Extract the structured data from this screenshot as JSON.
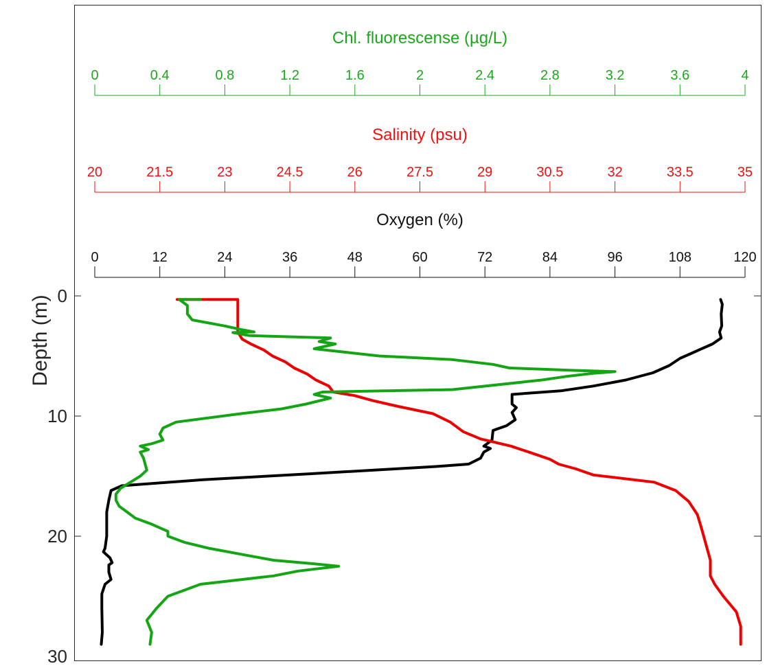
{
  "chart_data": {
    "type": "line",
    "y_axis": {
      "label": "Depth (m)",
      "range": [
        0,
        30
      ],
      "inverted": true,
      "ticks": [
        "0",
        "10",
        "20",
        "30"
      ]
    },
    "x_axes": [
      {
        "key": "chl",
        "label": "Chl. fluorescense (µg/L)",
        "color": "#1aa81a",
        "range": [
          0,
          4
        ],
        "ticks": [
          "0",
          "0.4",
          "0.8",
          "1.2",
          "1.6",
          "2",
          "2.4",
          "2.8",
          "3.2",
          "3.6",
          "4"
        ]
      },
      {
        "key": "salinity",
        "label": "Salinity (psu)",
        "color": "#ee1111",
        "range": [
          20,
          35
        ],
        "ticks": [
          "20",
          "21.5",
          "23",
          "24.5",
          "26",
          "27.5",
          "29",
          "30.5",
          "32",
          "33.5",
          "35"
        ]
      },
      {
        "key": "oxygen",
        "label": "Oxygen (%)",
        "color": "#111111",
        "range": [
          0,
          120
        ],
        "ticks": [
          "0",
          "12",
          "24",
          "36",
          "48",
          "60",
          "72",
          "84",
          "96",
          "108",
          "120"
        ]
      }
    ],
    "series": [
      {
        "axis": "oxygen",
        "color": "#000000",
        "points": [
          [
            115.5,
            0.3
          ],
          [
            115.8,
            0.7
          ],
          [
            115.6,
            1.5
          ],
          [
            115.7,
            2.5
          ],
          [
            115.3,
            3.0
          ],
          [
            115.6,
            3.5
          ],
          [
            114.0,
            4.0
          ],
          [
            111.0,
            4.6
          ],
          [
            108.0,
            5.2
          ],
          [
            106.0,
            5.8
          ],
          [
            103.0,
            6.4
          ],
          [
            98.0,
            7.0
          ],
          [
            92.0,
            7.5
          ],
          [
            86.0,
            7.9
          ],
          [
            77.0,
            8.2
          ],
          [
            77.0,
            9.0
          ],
          [
            77.8,
            9.3
          ],
          [
            77.0,
            9.7
          ],
          [
            77.6,
            10.3
          ],
          [
            76.0,
            10.8
          ],
          [
            73.5,
            11.2
          ],
          [
            73.3,
            12.0
          ],
          [
            71.8,
            12.5
          ],
          [
            73.0,
            12.7
          ],
          [
            71.8,
            13.0
          ],
          [
            71.2,
            13.5
          ],
          [
            69.0,
            14.0
          ],
          [
            63.0,
            14.2
          ],
          [
            40.0,
            14.8
          ],
          [
            20.0,
            15.3
          ],
          [
            5.0,
            15.8
          ],
          [
            3.0,
            16.2
          ],
          [
            2.7,
            16.8
          ],
          [
            2.6,
            17.0
          ],
          [
            2.2,
            18.0
          ],
          [
            2.2,
            20.0
          ],
          [
            1.9,
            21.0
          ],
          [
            1.6,
            21.3
          ],
          [
            2.8,
            21.8
          ],
          [
            3.2,
            22.2
          ],
          [
            2.6,
            22.4
          ],
          [
            2.6,
            23.0
          ],
          [
            3.0,
            23.6
          ],
          [
            1.9,
            24.0
          ],
          [
            1.3,
            24.8
          ],
          [
            1.3,
            26.0
          ],
          [
            1.4,
            28.0
          ],
          [
            1.2,
            29.0
          ]
        ]
      },
      {
        "axis": "salinity",
        "color": "#ee0000",
        "points": [
          [
            21.9,
            0.3
          ],
          [
            22.1,
            0.3
          ],
          [
            23.3,
            0.3
          ],
          [
            23.3,
            0.7
          ],
          [
            23.3,
            1.5
          ],
          [
            23.3,
            3.0
          ],
          [
            23.4,
            3.6
          ],
          [
            23.6,
            4.0
          ],
          [
            23.9,
            4.5
          ],
          [
            24.1,
            5.0
          ],
          [
            24.4,
            5.5
          ],
          [
            24.6,
            6.0
          ],
          [
            24.9,
            6.5
          ],
          [
            25.1,
            7.0
          ],
          [
            25.4,
            7.5
          ],
          [
            25.5,
            8.0
          ],
          [
            26.0,
            8.3
          ],
          [
            26.4,
            8.7
          ],
          [
            27.0,
            9.2
          ],
          [
            27.8,
            9.8
          ],
          [
            28.2,
            10.5
          ],
          [
            28.5,
            11.3
          ],
          [
            28.9,
            11.9
          ],
          [
            29.6,
            12.5
          ],
          [
            30.1,
            13.1
          ],
          [
            30.5,
            13.6
          ],
          [
            30.7,
            14.0
          ],
          [
            31.1,
            14.4
          ],
          [
            31.5,
            14.9
          ],
          [
            32.9,
            15.5
          ],
          [
            33.4,
            16.2
          ],
          [
            33.7,
            17.1
          ],
          [
            33.9,
            18.2
          ],
          [
            34.0,
            19.4
          ],
          [
            34.1,
            20.7
          ],
          [
            34.2,
            22.0
          ],
          [
            34.2,
            23.3
          ],
          [
            34.3,
            24.0
          ],
          [
            34.5,
            25.0
          ],
          [
            34.8,
            26.3
          ],
          [
            34.9,
            27.5
          ],
          [
            34.9,
            29.0
          ]
        ]
      },
      {
        "axis": "chl",
        "color": "#14a514",
        "points": [
          [
            0.65,
            0.3
          ],
          [
            0.55,
            0.3
          ],
          [
            0.52,
            0.3
          ],
          [
            0.57,
            0.8
          ],
          [
            0.57,
            1.5
          ],
          [
            0.6,
            2.0
          ],
          [
            0.8,
            2.5
          ],
          [
            0.9,
            2.8
          ],
          [
            0.98,
            3.0
          ],
          [
            0.85,
            3.05
          ],
          [
            0.95,
            3.3
          ],
          [
            1.45,
            3.5
          ],
          [
            1.38,
            3.8
          ],
          [
            1.48,
            4.0
          ],
          [
            1.35,
            4.4
          ],
          [
            1.75,
            5.0
          ],
          [
            2.2,
            5.3
          ],
          [
            2.45,
            5.7
          ],
          [
            2.55,
            6.0
          ],
          [
            2.95,
            6.2
          ],
          [
            3.2,
            6.3
          ],
          [
            3.06,
            6.45
          ],
          [
            2.9,
            6.7
          ],
          [
            2.75,
            7.0
          ],
          [
            2.2,
            7.8
          ],
          [
            1.4,
            8.0
          ],
          [
            1.35,
            8.2
          ],
          [
            1.45,
            8.5
          ],
          [
            1.3,
            9.0
          ],
          [
            1.15,
            9.4
          ],
          [
            0.9,
            9.8
          ],
          [
            0.5,
            10.5
          ],
          [
            0.42,
            11.0
          ],
          [
            0.4,
            11.5
          ],
          [
            0.42,
            12.0
          ],
          [
            0.35,
            12.3
          ],
          [
            0.28,
            12.5
          ],
          [
            0.33,
            12.8
          ],
          [
            0.28,
            13.0
          ],
          [
            0.3,
            13.5
          ],
          [
            0.32,
            14.5
          ],
          [
            0.28,
            15.0
          ],
          [
            0.22,
            15.5
          ],
          [
            0.16,
            16.0
          ],
          [
            0.13,
            16.5
          ],
          [
            0.13,
            17.0
          ],
          [
            0.15,
            17.5
          ],
          [
            0.2,
            18.0
          ],
          [
            0.25,
            18.5
          ],
          [
            0.35,
            19.0
          ],
          [
            0.4,
            19.3
          ],
          [
            0.45,
            19.6
          ],
          [
            0.45,
            20.0
          ],
          [
            0.55,
            20.5
          ],
          [
            0.7,
            21.0
          ],
          [
            0.9,
            21.5
          ],
          [
            1.1,
            22.0
          ],
          [
            1.35,
            22.3
          ],
          [
            1.5,
            22.5
          ],
          [
            1.25,
            22.9
          ],
          [
            1.1,
            23.3
          ],
          [
            0.65,
            24.0
          ],
          [
            0.55,
            24.5
          ],
          [
            0.45,
            25.0
          ],
          [
            0.38,
            26.0
          ],
          [
            0.32,
            27.0
          ],
          [
            0.35,
            28.0
          ],
          [
            0.34,
            29.0
          ]
        ]
      }
    ]
  }
}
